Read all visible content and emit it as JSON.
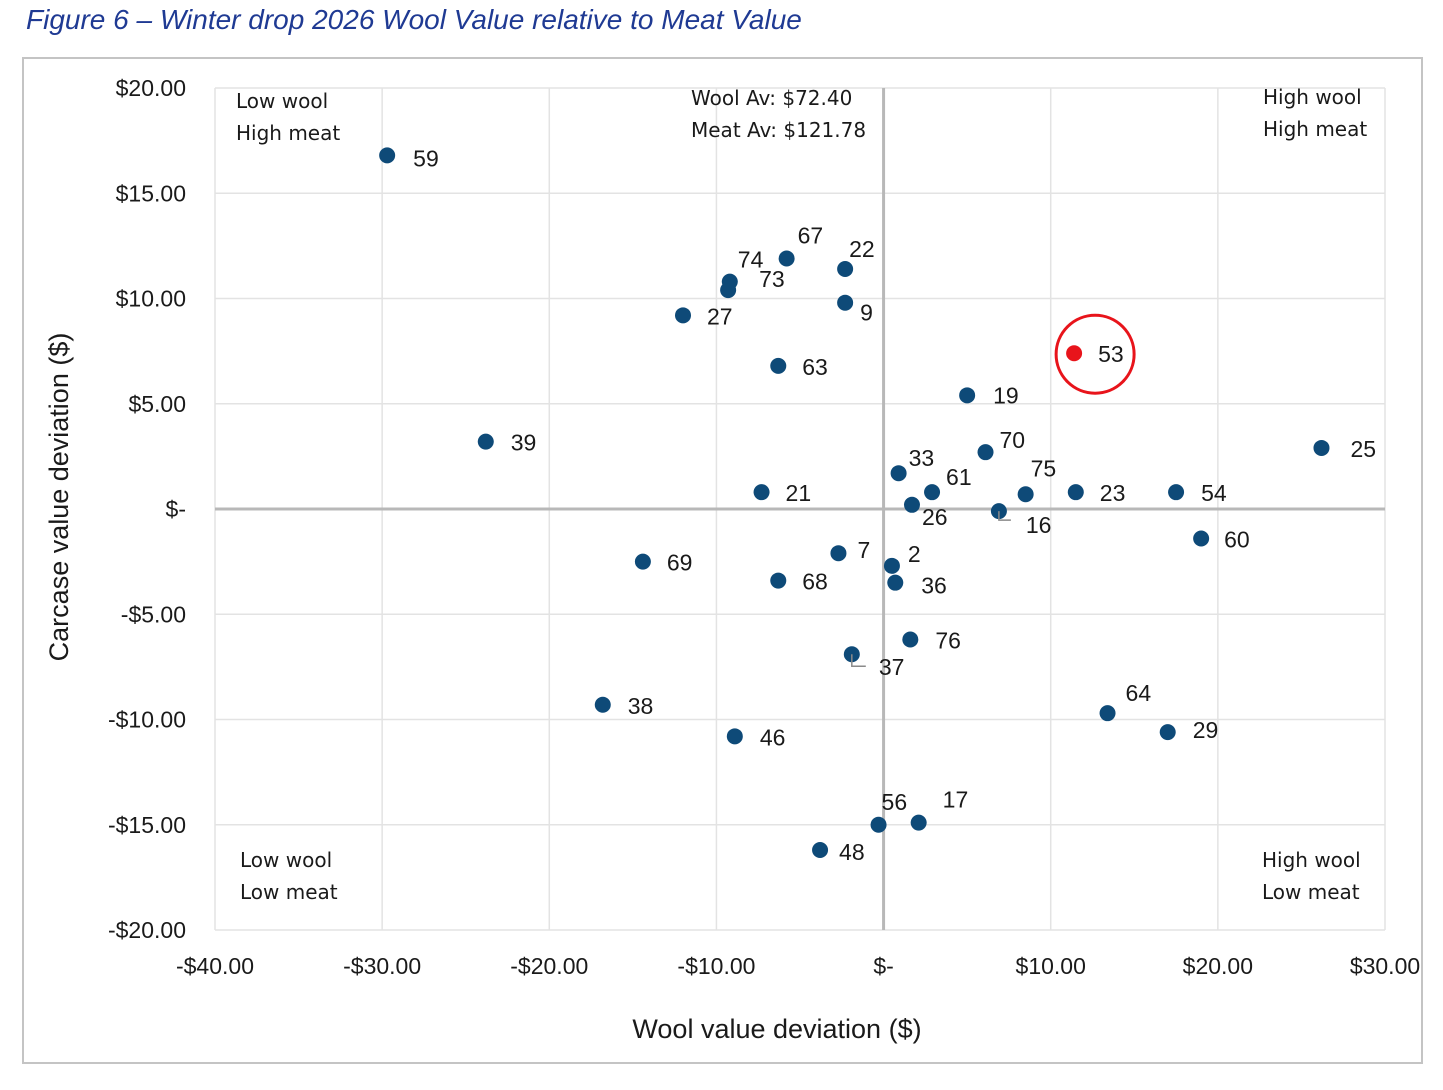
{
  "figure_title": "Figure 6 – Winter drop 2026 Wool Value relative to Meat Value",
  "colors": {
    "point": "#0e4a78",
    "highlight": "#e8141b",
    "grid": "#e3e3e3",
    "zero_line": "#b8b8b8"
  },
  "chart_data": {
    "type": "scatter",
    "xlabel": "Wool value deviation ($)",
    "ylabel": "Carcase value deviation ($)",
    "xlim": [
      -40,
      30
    ],
    "ylim": [
      -20,
      20
    ],
    "x_ticks": [
      -40,
      -30,
      -20,
      -10,
      0,
      10,
      20,
      30
    ],
    "y_ticks": [
      -20,
      -15,
      -10,
      -5,
      0,
      5,
      10,
      15,
      20
    ],
    "x_tick_labels": [
      "-$40.00",
      "-$30.00",
      "-$20.00",
      "-$10.00",
      "$-",
      "$10.00",
      "$20.00",
      "$30.00"
    ],
    "y_tick_labels": [
      "-$20.00",
      "-$15.00",
      "-$10.00",
      "-$5.00",
      "$-",
      "$5.00",
      "$10.00",
      "$15.00",
      "$20.00"
    ],
    "grid": true,
    "annotations": {
      "averages": [
        "Wool Av: $72.40",
        "Meat Av: $121.78"
      ],
      "quadrants": {
        "top_left": [
          "Low wool",
          "High meat"
        ],
        "top_right": [
          "High wool",
          "High meat"
        ],
        "bottom_left": [
          "Low wool",
          "Low meat"
        ],
        "bottom_right": [
          "High wool",
          "Low meat"
        ]
      }
    },
    "highlighted": "53",
    "points": [
      {
        "label": "59",
        "x": -29.7,
        "y": 16.8
      },
      {
        "label": "67",
        "x": -5.8,
        "y": 11.9
      },
      {
        "label": "22",
        "x": -2.3,
        "y": 11.4
      },
      {
        "label": "74",
        "x": -9.2,
        "y": 10.8
      },
      {
        "label": "73",
        "x": -9.3,
        "y": 10.4
      },
      {
        "label": "9",
        "x": -2.3,
        "y": 9.8
      },
      {
        "label": "27",
        "x": -12.0,
        "y": 9.2
      },
      {
        "label": "53",
        "x": 11.4,
        "y": 7.4
      },
      {
        "label": "63",
        "x": -6.3,
        "y": 6.8
      },
      {
        "label": "19",
        "x": 5.0,
        "y": 5.4
      },
      {
        "label": "39",
        "x": -23.8,
        "y": 3.2
      },
      {
        "label": "25",
        "x": 26.2,
        "y": 2.9
      },
      {
        "label": "70",
        "x": 6.1,
        "y": 2.7
      },
      {
        "label": "33",
        "x": 0.9,
        "y": 1.7
      },
      {
        "label": "61",
        "x": 2.9,
        "y": 0.8
      },
      {
        "label": "75",
        "x": 8.5,
        "y": 0.7
      },
      {
        "label": "23",
        "x": 11.5,
        "y": 0.8
      },
      {
        "label": "54",
        "x": 17.5,
        "y": 0.8
      },
      {
        "label": "21",
        "x": -7.3,
        "y": 0.8
      },
      {
        "label": "26",
        "x": 1.7,
        "y": 0.2
      },
      {
        "label": "16",
        "x": 6.9,
        "y": -0.1
      },
      {
        "label": "60",
        "x": 19.0,
        "y": -1.4
      },
      {
        "label": "7",
        "x": -2.7,
        "y": -2.1
      },
      {
        "label": "2",
        "x": 0.5,
        "y": -2.7
      },
      {
        "label": "69",
        "x": -14.4,
        "y": -2.5
      },
      {
        "label": "68",
        "x": -6.3,
        "y": -3.4
      },
      {
        "label": "36",
        "x": 0.7,
        "y": -3.5
      },
      {
        "label": "76",
        "x": 1.6,
        "y": -6.2
      },
      {
        "label": "37",
        "x": -1.9,
        "y": -6.9
      },
      {
        "label": "38",
        "x": -16.8,
        "y": -9.3
      },
      {
        "label": "64",
        "x": 13.4,
        "y": -9.7
      },
      {
        "label": "29",
        "x": 17.0,
        "y": -10.6
      },
      {
        "label": "46",
        "x": -8.9,
        "y": -10.8
      },
      {
        "label": "56",
        "x": -0.3,
        "y": -15.0
      },
      {
        "label": "17",
        "x": 2.1,
        "y": -14.9
      },
      {
        "label": "48",
        "x": -3.8,
        "y": -16.2
      }
    ]
  }
}
